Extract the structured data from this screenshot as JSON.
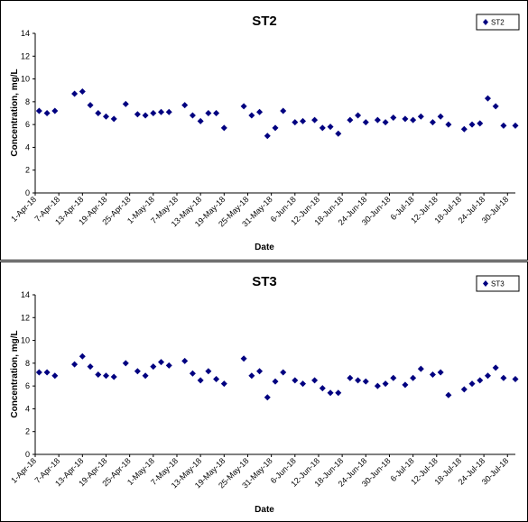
{
  "charts": [
    {
      "title": "ST2",
      "ylabel": "Concentration, mg/L",
      "xlabel": "Date",
      "legend": "ST2"
    },
    {
      "title": "ST3",
      "ylabel": "Concentration, mg/L",
      "xlabel": "Date",
      "legend": "ST3"
    }
  ],
  "chart_data": [
    {
      "type": "scatter",
      "title": "ST2",
      "xlabel": "Date",
      "ylabel": "Concentration, mg/L",
      "ylim": [
        0,
        14
      ],
      "yticks": [
        0,
        2,
        4,
        6,
        8,
        10,
        12,
        14
      ],
      "xlim": [
        "2018-04-01",
        "2018-08-01"
      ],
      "xtick_labels": [
        "1-Apr-18",
        "7-Apr-18",
        "13-Apr-18",
        "19-Apr-18",
        "25-Apr-18",
        "1-May-18",
        "7-May-18",
        "13-May-18",
        "19-May-18",
        "25-May-18",
        "31-May-18",
        "6-Jun-18",
        "12-Jun-18",
        "18-Jun-18",
        "24-Jun-18",
        "30-Jun-18",
        "6-Jul-18",
        "12-Jul-18",
        "18-Jul-18",
        "24-Jul-18",
        "30-Jul-18"
      ],
      "grid": false,
      "legend_position": "top-right",
      "marker": "diamond",
      "color": "#000080",
      "series": [
        {
          "name": "ST2",
          "points": [
            [
              "2018-04-02",
              7.2
            ],
            [
              "2018-04-04",
              7.0
            ],
            [
              "2018-04-06",
              7.2
            ],
            [
              "2018-04-11",
              8.7
            ],
            [
              "2018-04-13",
              8.9
            ],
            [
              "2018-04-15",
              7.7
            ],
            [
              "2018-04-17",
              7.0
            ],
            [
              "2018-04-19",
              6.7
            ],
            [
              "2018-04-21",
              6.5
            ],
            [
              "2018-04-24",
              7.8
            ],
            [
              "2018-04-27",
              6.9
            ],
            [
              "2018-04-29",
              6.8
            ],
            [
              "2018-05-01",
              7.0
            ],
            [
              "2018-05-03",
              7.1
            ],
            [
              "2018-05-05",
              7.1
            ],
            [
              "2018-05-09",
              7.7
            ],
            [
              "2018-05-11",
              6.8
            ],
            [
              "2018-05-13",
              6.3
            ],
            [
              "2018-05-15",
              7.0
            ],
            [
              "2018-05-17",
              7.0
            ],
            [
              "2018-05-19",
              5.7
            ],
            [
              "2018-05-24",
              7.6
            ],
            [
              "2018-05-26",
              6.8
            ],
            [
              "2018-05-28",
              7.1
            ],
            [
              "2018-05-30",
              5.0
            ],
            [
              "2018-06-01",
              5.7
            ],
            [
              "2018-06-03",
              7.2
            ],
            [
              "2018-06-06",
              6.2
            ],
            [
              "2018-06-08",
              6.3
            ],
            [
              "2018-06-11",
              6.4
            ],
            [
              "2018-06-13",
              5.7
            ],
            [
              "2018-06-15",
              5.8
            ],
            [
              "2018-06-17",
              5.2
            ],
            [
              "2018-06-20",
              6.4
            ],
            [
              "2018-06-22",
              6.8
            ],
            [
              "2018-06-24",
              6.2
            ],
            [
              "2018-06-27",
              6.4
            ],
            [
              "2018-06-29",
              6.2
            ],
            [
              "2018-07-01",
              6.6
            ],
            [
              "2018-07-04",
              6.5
            ],
            [
              "2018-07-06",
              6.4
            ],
            [
              "2018-07-08",
              6.7
            ],
            [
              "2018-07-11",
              6.2
            ],
            [
              "2018-07-13",
              6.7
            ],
            [
              "2018-07-15",
              6.0
            ],
            [
              "2018-07-19",
              5.6
            ],
            [
              "2018-07-21",
              6.0
            ],
            [
              "2018-07-23",
              6.1
            ],
            [
              "2018-07-25",
              8.3
            ],
            [
              "2018-07-27",
              7.6
            ],
            [
              "2018-07-29",
              5.9
            ],
            [
              "2018-08-01",
              5.9
            ]
          ]
        }
      ]
    },
    {
      "type": "scatter",
      "title": "ST3",
      "xlabel": "Date",
      "ylabel": "Concentration, mg/L",
      "ylim": [
        0,
        14
      ],
      "yticks": [
        0,
        2,
        4,
        6,
        8,
        10,
        12,
        14
      ],
      "xlim": [
        "2018-04-01",
        "2018-08-01"
      ],
      "xtick_labels": [
        "1-Apr-18",
        "7-Apr-18",
        "13-Apr-18",
        "19-Apr-18",
        "25-Apr-18",
        "1-May-18",
        "7-May-18",
        "13-May-18",
        "19-May-18",
        "25-May-18",
        "31-May-18",
        "6-Jun-18",
        "12-Jun-18",
        "18-Jun-18",
        "24-Jun-18",
        "30-Jun-18",
        "6-Jul-18",
        "12-Jul-18",
        "18-Jul-18",
        "24-Jul-18",
        "30-Jul-18"
      ],
      "grid": false,
      "legend_position": "top-right",
      "marker": "diamond",
      "color": "#000080",
      "series": [
        {
          "name": "ST3",
          "points": [
            [
              "2018-04-02",
              7.2
            ],
            [
              "2018-04-04",
              7.2
            ],
            [
              "2018-04-06",
              6.9
            ],
            [
              "2018-04-11",
              7.9
            ],
            [
              "2018-04-13",
              8.6
            ],
            [
              "2018-04-15",
              7.7
            ],
            [
              "2018-04-17",
              7.0
            ],
            [
              "2018-04-19",
              6.9
            ],
            [
              "2018-04-21",
              6.8
            ],
            [
              "2018-04-24",
              8.0
            ],
            [
              "2018-04-27",
              7.3
            ],
            [
              "2018-04-29",
              6.9
            ],
            [
              "2018-05-01",
              7.7
            ],
            [
              "2018-05-03",
              8.1
            ],
            [
              "2018-05-05",
              7.8
            ],
            [
              "2018-05-09",
              8.2
            ],
            [
              "2018-05-11",
              7.1
            ],
            [
              "2018-05-13",
              6.5
            ],
            [
              "2018-05-15",
              7.3
            ],
            [
              "2018-05-17",
              6.6
            ],
            [
              "2018-05-19",
              6.2
            ],
            [
              "2018-05-24",
              8.4
            ],
            [
              "2018-05-26",
              6.9
            ],
            [
              "2018-05-28",
              7.3
            ],
            [
              "2018-05-30",
              5.0
            ],
            [
              "2018-06-01",
              6.4
            ],
            [
              "2018-06-03",
              7.2
            ],
            [
              "2018-06-06",
              6.5
            ],
            [
              "2018-06-08",
              6.2
            ],
            [
              "2018-06-11",
              6.5
            ],
            [
              "2018-06-13",
              5.8
            ],
            [
              "2018-06-15",
              5.4
            ],
            [
              "2018-06-17",
              5.4
            ],
            [
              "2018-06-20",
              6.7
            ],
            [
              "2018-06-22",
              6.5
            ],
            [
              "2018-06-24",
              6.4
            ],
            [
              "2018-06-27",
              6.0
            ],
            [
              "2018-06-29",
              6.2
            ],
            [
              "2018-07-01",
              6.7
            ],
            [
              "2018-07-04",
              6.1
            ],
            [
              "2018-07-06",
              6.7
            ],
            [
              "2018-07-08",
              7.5
            ],
            [
              "2018-07-11",
              7.0
            ],
            [
              "2018-07-13",
              7.2
            ],
            [
              "2018-07-15",
              5.2
            ],
            [
              "2018-07-19",
              5.7
            ],
            [
              "2018-07-21",
              6.2
            ],
            [
              "2018-07-23",
              6.5
            ],
            [
              "2018-07-25",
              6.9
            ],
            [
              "2018-07-27",
              7.6
            ],
            [
              "2018-07-29",
              6.7
            ],
            [
              "2018-08-01",
              6.6
            ]
          ]
        }
      ]
    }
  ]
}
